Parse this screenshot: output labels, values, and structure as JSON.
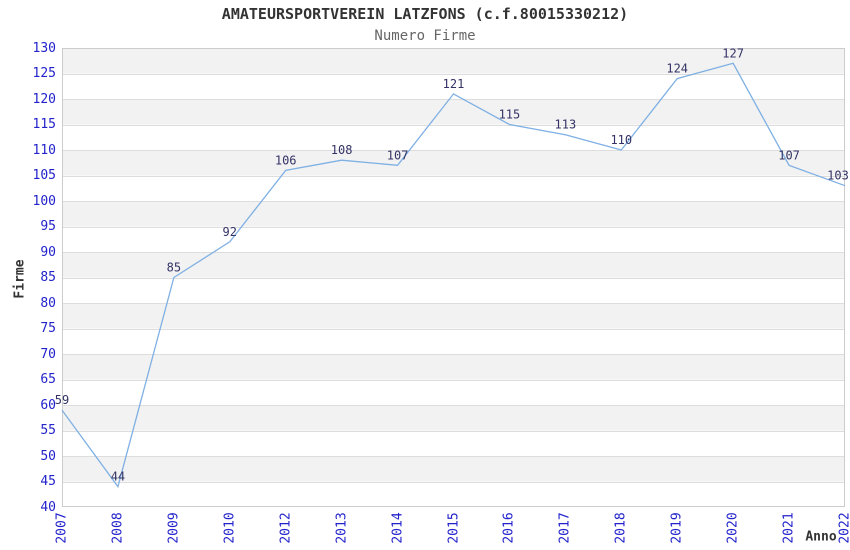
{
  "chart_data": {
    "type": "line",
    "title": "AMATEURSPORTVEREIN LATZFONS (c.f.80015330212)",
    "subtitle": "Numero Firme",
    "xlabel": "Anno",
    "ylabel": "Firme",
    "categories": [
      "2007",
      "2008",
      "2009",
      "2010",
      "2012",
      "2013",
      "2014",
      "2015",
      "2016",
      "2017",
      "2018",
      "2019",
      "2020",
      "2021",
      "2022"
    ],
    "values": [
      59,
      44,
      85,
      92,
      106,
      108,
      107,
      121,
      115,
      113,
      110,
      124,
      127,
      107,
      103
    ],
    "ylim": [
      40,
      130
    ],
    "ytick_step": 5,
    "grid": "horizontal gridlines with alternating gray/white bands",
    "legend": "none",
    "x_tick_rotation": -90,
    "data_labels_shown": true
  },
  "colors": {
    "line": "#7FB0E4",
    "tick_label": "#2222CC",
    "data_label": "#333366",
    "band": "#F2F2F2",
    "gridline": "#DDDDDD",
    "plot_border": "#CCCCCC",
    "title": "#333333",
    "subtitle": "#666666",
    "axis_title": "#333333",
    "background": "#FFFFFF"
  }
}
